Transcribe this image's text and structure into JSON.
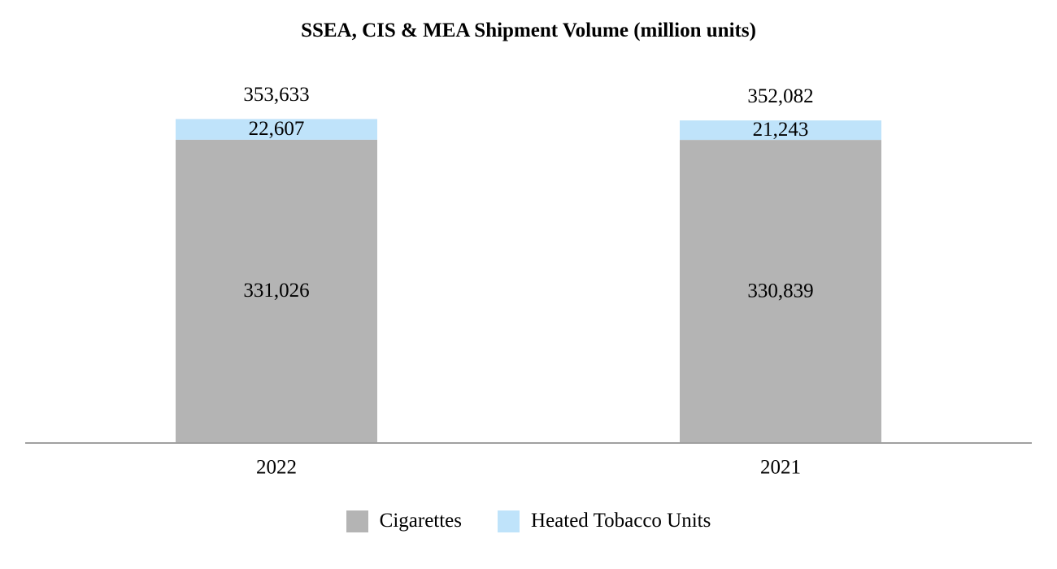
{
  "chart_data": {
    "type": "bar",
    "stacked": true,
    "title": "SSEA, CIS & MEA Shipment Volume (million units)",
    "categories": [
      "2022",
      "2021"
    ],
    "series": [
      {
        "name": "Cigarettes",
        "color": "#b4b4b4",
        "values": [
          331026,
          330839
        ],
        "labels": [
          "331,026",
          "330,839"
        ]
      },
      {
        "name": "Heated Tobacco Units",
        "color": "#bfe3fa",
        "values": [
          22607,
          21243
        ],
        "labels": [
          "22,607",
          "21,243"
        ]
      }
    ],
    "totals": [
      353633,
      352082
    ],
    "total_labels": [
      "353,633",
      "352,082"
    ],
    "ylim": [
      0,
      354000
    ],
    "xlabel": "",
    "ylabel": "",
    "grid": false,
    "legend": "bottom-center"
  }
}
